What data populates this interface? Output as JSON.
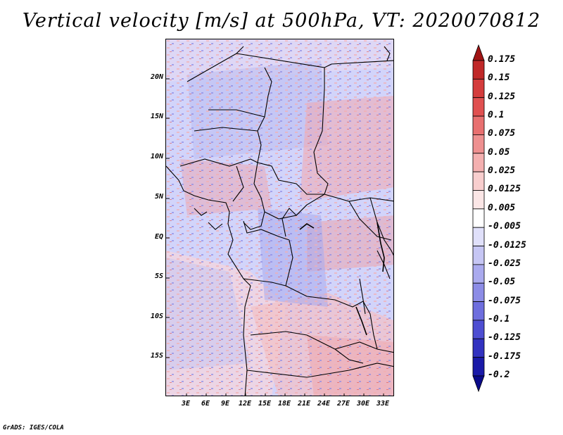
{
  "title": "Vertical velocity [m/s] at 500hPa, VT: 2020070812",
  "footer": "GrADS: IGES/COLA",
  "map": {
    "lat_labels": [
      "20N",
      "15N",
      "10N",
      "5N",
      "EQ",
      "5S",
      "10S",
      "15S"
    ],
    "lon_labels": [
      "3E",
      "6E",
      "9E",
      "12E",
      "15E",
      "18E",
      "21E",
      "24E",
      "27E",
      "30E",
      "33E"
    ]
  },
  "colorbar": {
    "labels": [
      "0.175",
      "0.15",
      "0.125",
      "0.1",
      "0.075",
      "0.05",
      "0.025",
      "0.0125",
      "0.005",
      "-0.005",
      "-0.0125",
      "-0.025",
      "-0.05",
      "-0.075",
      "-0.1",
      "-0.125",
      "-0.175",
      "-0.2"
    ],
    "colors": [
      "#a01414",
      "#c02828",
      "#d43c3c",
      "#e05050",
      "#e87070",
      "#ee9090",
      "#f4b0b0",
      "#f8cece",
      "#fbe6e6",
      "#ffffff",
      "#e0e0fa",
      "#c6c6f4",
      "#aaaaee",
      "#8c8ce6",
      "#6e6ede",
      "#4e4ed2",
      "#3232c0",
      "#1a1aa8",
      "#0a0a8a"
    ]
  }
}
